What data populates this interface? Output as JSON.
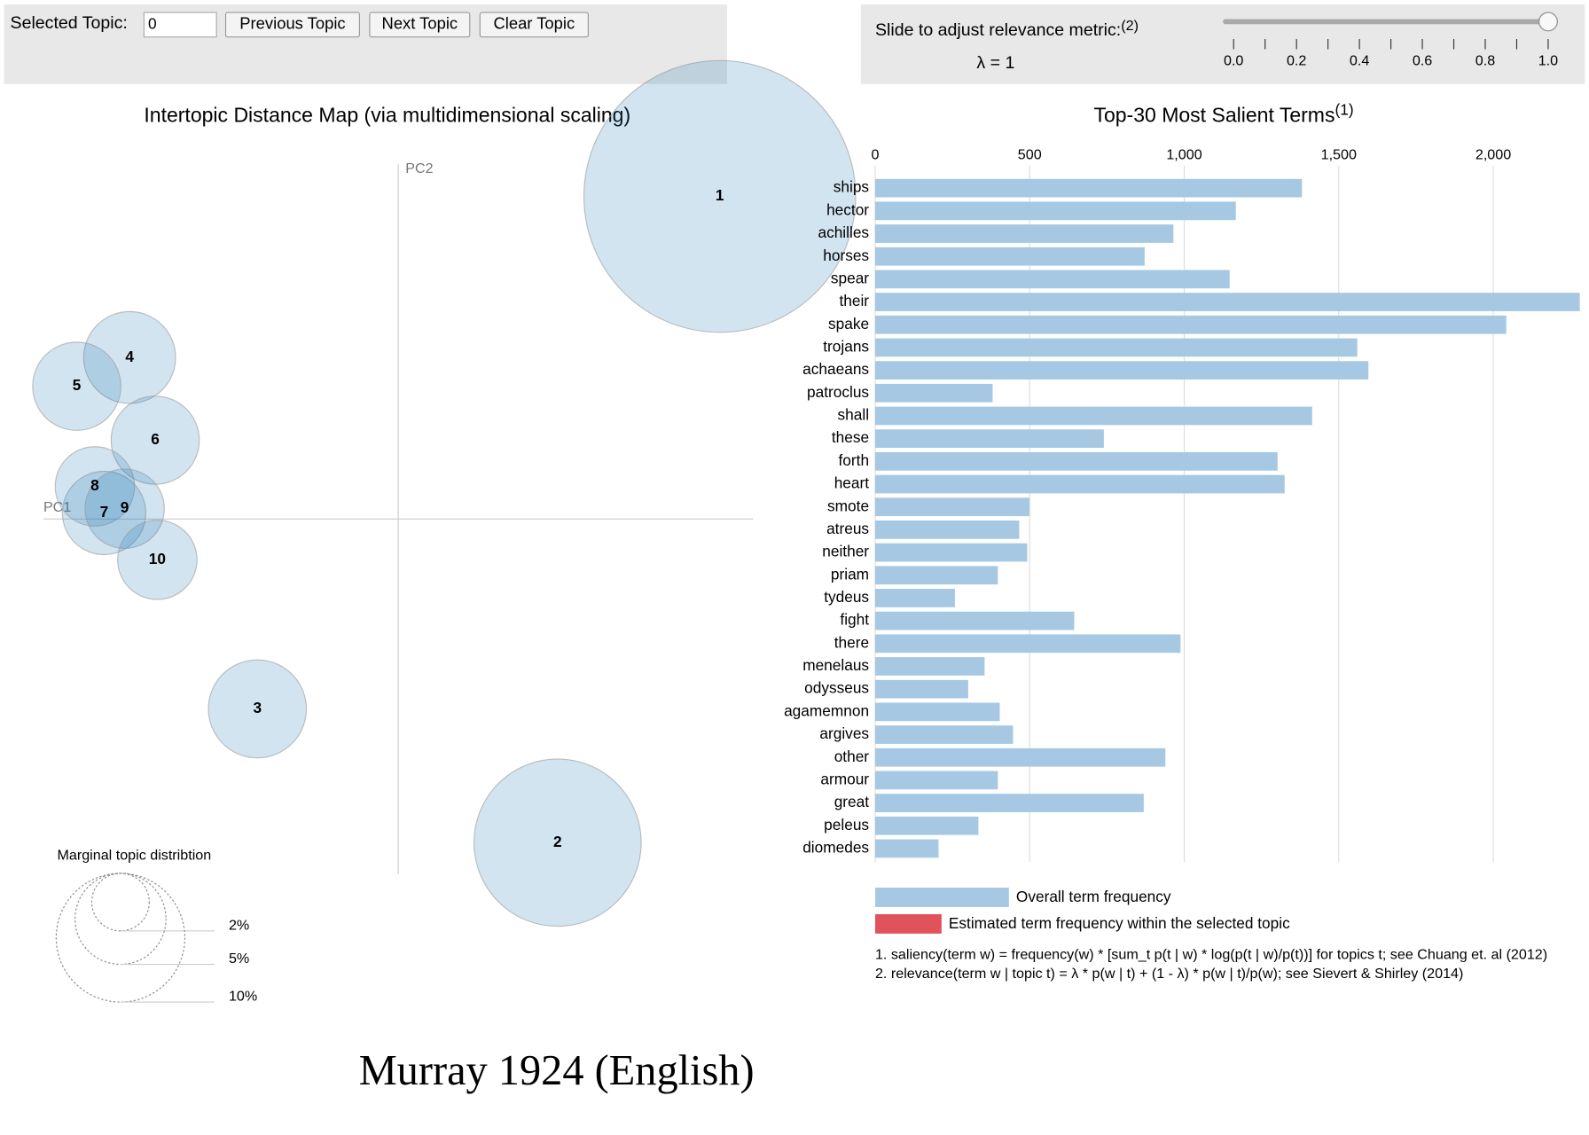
{
  "controls": {
    "selected_topic_label": "Selected Topic:",
    "selected_topic_value": "0",
    "buttons": [
      "Previous Topic",
      "Next Topic",
      "Clear Topic"
    ]
  },
  "slider": {
    "label": "Slide to adjust relevance metric:",
    "footnote": "(2)",
    "lambda_text": "λ = 1",
    "value": 1,
    "range": [
      0,
      1
    ],
    "ticks": [
      {
        "value": 0,
        "label": "0.0"
      },
      0.2,
      0.4,
      0.6,
      0.8,
      {
        "value": 1,
        "label": "1.0"
      }
    ],
    "minor_ticks": [
      0.1,
      0.3,
      0.5,
      0.7,
      0.9
    ]
  },
  "chart_data": [
    {
      "type": "bubble",
      "title": "Intertopic Distance Map (via multidimensional scaling)",
      "xlabel": "PC1",
      "ylabel": "PC2",
      "xlim": [
        -1,
        1
      ],
      "ylim": [
        -1,
        1
      ],
      "categories": [
        "1",
        "2",
        "3",
        "4",
        "5",
        "6",
        "7",
        "8",
        "9",
        "10"
      ],
      "x": [
        0.906,
        0.449,
        -0.397,
        -0.757,
        -0.906,
        -0.685,
        -0.829,
        -0.855,
        -0.771,
        -0.679
      ],
      "y": [
        0.909,
        -0.912,
        -0.535,
        0.455,
        0.374,
        0.222,
        0.017,
        0.092,
        0.029,
        -0.115
      ],
      "size": [
        44.6,
        16.9,
        5.8,
        5.1,
        4.7,
        4.7,
        4.2,
        3.8,
        3.8,
        3.8
      ],
      "color": "#1f77b4",
      "size_legend_title": "Marginal topic distribtion",
      "size_legend": [
        {
          "value": 2,
          "label": "2%"
        },
        {
          "value": 5,
          "label": "5%"
        },
        {
          "value": 10,
          "label": "10%"
        }
      ]
    },
    {
      "type": "barh",
      "title": "Top-30 Most Salient Terms",
      "title_footnote": "(1)",
      "categories": [
        "ships",
        "hector",
        "achilles",
        "horses",
        "spear",
        "their",
        "spake",
        "trojans",
        "achaeans",
        "patroclus",
        "shall",
        "these",
        "forth",
        "heart",
        "smote",
        "atreus",
        "neither",
        "priam",
        "tydeus",
        "fight",
        "there",
        "menelaus",
        "odysseus",
        "agamemnon",
        "argives",
        "other",
        "armour",
        "great",
        "peleus",
        "diomedes"
      ],
      "values": [
        1381,
        1167,
        965,
        872,
        1147,
        2280,
        2042,
        1560,
        1596,
        380,
        1414,
        740,
        1302,
        1325,
        499,
        466,
        492,
        397,
        258,
        644,
        988,
        354,
        301,
        403,
        446,
        939,
        397,
        869,
        334,
        205
      ],
      "color": "#a6c8e2",
      "xlim": [
        0,
        2280
      ],
      "xticks": [
        0,
        500,
        {
          "value": 1000,
          "label": "1,000"
        },
        {
          "value": 1500,
          "label": "1,500"
        },
        {
          "value": 2000,
          "label": "2,000"
        }
      ],
      "grid": true,
      "legend": [
        {
          "name": "Overall term frequency",
          "color": "#a6c8e2"
        },
        {
          "name": "Estimated term frequency within the selected topic",
          "color": "#e0535a"
        }
      ],
      "footnotes": [
        "1. saliency(term w) = frequency(w) * [sum_t p(t | w) * log(p(t | w)/p(t))] for topics t; see Chuang et. al (2012)",
        "2. relevance(term w | topic t) = λ * p(w | t) + (1 - λ) * p(w | t)/p(w); see Sievert & Shirley (2014)"
      ]
    }
  ],
  "caption": "Murray 1924 (English)"
}
